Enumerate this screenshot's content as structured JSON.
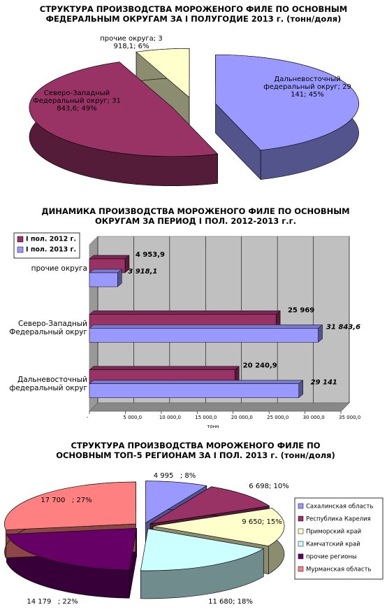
{
  "chart_data": [
    {
      "type": "pie",
      "title": "СТРУКТУРА ПРОИЗВОДСТВА МОРОЖЕНОГО ФИЛЕ ПО ОСНОВНЫМ ФЕДЕРАЛЬНЫМ ОКРУГАМ ЗА I ПОЛУГОДИЕ 2013 г. (тонн/доля)",
      "categories": [
        "Дальневосточный федеральный округ;",
        "Северо-Западный Федеральный округ;",
        "прочие округа;"
      ],
      "values": [
        29141,
        31843.6,
        3918.1
      ],
      "value_labels": [
        "29 141; 45%",
        "31 843,6; 49%",
        "3 918,1; 6%"
      ],
      "colors": [
        "#9999ff",
        "#993366",
        "#ffffcc"
      ]
    },
    {
      "type": "hbar",
      "title": "ДИНАМИКА ПРОИЗВОДСТВА МОРОЖЕНОГО ФИЛЕ ПО ОСНОВНЫМ ОКРУГАМ ЗА ПЕРИОД I ПОЛ. 2012-2013 г.г.",
      "categories": [
        "прочие округа",
        "Северо-Западный Федеральный округ",
        "Дальневосточный федеральный округ"
      ],
      "series": [
        {
          "name": "I пол. 2012 г.",
          "color": "#993366",
          "values": [
            4953.9,
            25969,
            20240.9
          ],
          "value_labels": [
            "4 953,9",
            "25 969",
            "20 240,9"
          ]
        },
        {
          "name": "I пол. 2013 г.",
          "color": "#9999ff",
          "values": [
            3918.1,
            31843.6,
            29141
          ],
          "value_labels": [
            "3 918,1",
            "31 843,6",
            "29 141"
          ]
        }
      ],
      "xlabel": "тонн",
      "xlim": [
        0,
        35000
      ],
      "xticks": [
        {
          "value": 0,
          "label": "-"
        },
        {
          "value": 5000,
          "label": "5 000,0"
        },
        {
          "value": 10000,
          "label": "10 000,0"
        },
        {
          "value": 15000,
          "label": "15 000,0"
        },
        {
          "value": 20000,
          "label": "20 000,0"
        },
        {
          "value": 25000,
          "label": "25 000,0"
        },
        {
          "value": 30000,
          "label": "30 000,0"
        },
        {
          "value": 35000,
          "label": "35 000,0"
        }
      ],
      "grid": true
    },
    {
      "type": "pie",
      "title": "СТРУКТУРА ПРОИЗВОДСТВА МОРОЖЕНОГО ФИЛЕ ПО ОСНОВНЫМ ТОП-5 РЕГИОНАМ ЗА I ПОЛ. 2013 г. (тонн/доля)",
      "categories": [
        "Сахалинская область",
        "Республика Карелия",
        "Приморский край",
        "Камчатский край",
        "прочие регионы",
        "Мурманская область"
      ],
      "values": [
        4995,
        6698,
        9650,
        11680,
        14179,
        17700
      ],
      "value_labels": [
        "4 995   ; 8%",
        "6 698; 10%",
        "9 650; 15%",
        "11 680; 18%",
        "14 179   ; 22%",
        "17 700   ; 27%"
      ],
      "colors": [
        "#9999ff",
        "#993366",
        "#ffffcc",
        "#ccffff",
        "#660066",
        "#ff8080"
      ],
      "legend": "right"
    }
  ]
}
